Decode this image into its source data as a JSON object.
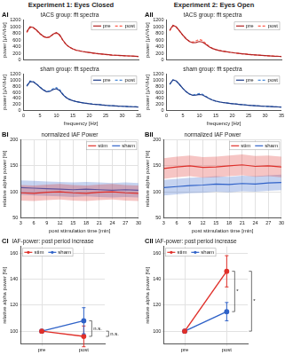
{
  "figure": {
    "headers": [
      "Experiment 1: Eyes Closed",
      "Experiment 2: Eyes Open"
    ]
  },
  "chart_data": [
    {
      "type": "line",
      "panel_label": "AI",
      "title": "tACS group: fft spectra",
      "y_label": "power [µV²/Hz]",
      "x": [
        1,
        2,
        3,
        4,
        5,
        6,
        7,
        8,
        9,
        10,
        11,
        12,
        13,
        14,
        15,
        16,
        17,
        18,
        19,
        20,
        21,
        22,
        23,
        24,
        25,
        26,
        27,
        28,
        29,
        30,
        31,
        32,
        33,
        34,
        35
      ],
      "xlim": [
        0,
        35
      ],
      "xticks": [
        0,
        5,
        10,
        15,
        20,
        25,
        30,
        35
      ],
      "ylim": [
        0,
        1200
      ],
      "yticks": [
        0,
        200,
        400,
        600,
        800,
        1000,
        1200
      ],
      "grid": false,
      "legend": "top-right",
      "tick_labels": "y",
      "series": [
        {
          "name": "pre",
          "color": "#b22222",
          "line_style": "solid",
          "values": [
            850,
            1000,
            980,
            900,
            800,
            720,
            680,
            700,
            780,
            830,
            760,
            600,
            470,
            390,
            340,
            300,
            280,
            260,
            245,
            230,
            215,
            200,
            190,
            180,
            170,
            160,
            150,
            145,
            140,
            135,
            130,
            125,
            120,
            115,
            110
          ]
        },
        {
          "name": "post",
          "color": "#ff5a4a",
          "line_style": "dashed",
          "values": [
            830,
            980,
            970,
            890,
            790,
            710,
            670,
            690,
            770,
            810,
            740,
            590,
            460,
            385,
            335,
            295,
            275,
            255,
            240,
            225,
            210,
            198,
            188,
            178,
            168,
            158,
            150,
            144,
            138,
            133,
            128,
            123,
            118,
            113,
            108
          ]
        }
      ]
    },
    {
      "type": "line",
      "title": "sham group: fft spectra",
      "x_label": "frequency [Hz]",
      "y_label": "power [µV²/Hz]",
      "x": [
        1,
        2,
        3,
        4,
        5,
        6,
        7,
        8,
        9,
        10,
        11,
        12,
        13,
        14,
        15,
        16,
        17,
        18,
        19,
        20,
        21,
        22,
        23,
        24,
        25,
        26,
        27,
        28,
        29,
        30,
        31,
        32,
        33,
        34,
        35
      ],
      "xlim": [
        0,
        35
      ],
      "xticks": [
        0,
        5,
        10,
        15,
        20,
        25,
        30,
        35
      ],
      "ylim": [
        0,
        1200
      ],
      "yticks": [
        0,
        200,
        400,
        600,
        800,
        1000,
        1200
      ],
      "grid": false,
      "legend": "top-right",
      "series": [
        {
          "name": "pre",
          "color": "#1f3c88",
          "line_style": "solid",
          "values": [
            800,
            960,
            950,
            870,
            770,
            680,
            620,
            630,
            690,
            720,
            660,
            520,
            420,
            360,
            320,
            290,
            270,
            250,
            235,
            220,
            205,
            195,
            185,
            175,
            165,
            155,
            148,
            142,
            137,
            132,
            127,
            122,
            117,
            113,
            108
          ]
        },
        {
          "name": "post",
          "color": "#4a8ad8",
          "line_style": "dashed",
          "values": [
            820,
            980,
            960,
            880,
            780,
            690,
            630,
            650,
            720,
            760,
            690,
            540,
            430,
            365,
            325,
            292,
            272,
            252,
            237,
            222,
            207,
            196,
            186,
            176,
            166,
            156,
            149,
            143,
            138,
            133,
            128,
            123,
            118,
            114,
            109
          ]
        }
      ]
    },
    {
      "type": "line",
      "panel_label": "AII",
      "title": "tACS group: fft spectra",
      "y_label": "power [µV²/Hz]",
      "x": [
        1,
        2,
        3,
        4,
        5,
        6,
        7,
        8,
        9,
        10,
        11,
        12,
        13,
        14,
        15,
        16,
        17,
        18,
        19,
        20,
        21,
        22,
        23,
        24,
        25,
        26,
        27,
        28,
        29,
        30,
        31,
        32,
        33,
        34,
        35
      ],
      "xlim": [
        0,
        35
      ],
      "xticks": [
        0,
        5,
        10,
        15,
        20,
        25,
        30,
        35
      ],
      "ylim": [
        0,
        1200
      ],
      "yticks": [
        0,
        200,
        400,
        600,
        800,
        1000,
        1200
      ],
      "grid": false,
      "legend": "top-right",
      "tick_labels": "y",
      "series": [
        {
          "name": "pre",
          "color": "#b22222",
          "line_style": "solid",
          "values": [
            900,
            1050,
            1000,
            880,
            750,
            640,
            560,
            520,
            530,
            560,
            540,
            470,
            400,
            350,
            315,
            290,
            270,
            255,
            240,
            225,
            212,
            200,
            190,
            180,
            170,
            162,
            154,
            147,
            140,
            134,
            128,
            122,
            117,
            112,
            107
          ]
        },
        {
          "name": "post",
          "color": "#ff5a4a",
          "line_style": "dashed",
          "values": [
            880,
            1030,
            990,
            870,
            745,
            640,
            565,
            540,
            580,
            620,
            590,
            500,
            415,
            355,
            318,
            292,
            272,
            256,
            241,
            226,
            213,
            201,
            191,
            181,
            171,
            163,
            155,
            148,
            141,
            135,
            129,
            123,
            118,
            113,
            108
          ]
        }
      ]
    },
    {
      "type": "line",
      "title": "sham group: fft spectra",
      "x_label": "frequency [Hz]",
      "y_label": "power [µV²/Hz]",
      "x": [
        1,
        2,
        3,
        4,
        5,
        6,
        7,
        8,
        9,
        10,
        11,
        12,
        13,
        14,
        15,
        16,
        17,
        18,
        19,
        20,
        21,
        22,
        23,
        24,
        25,
        26,
        27,
        28,
        29,
        30,
        31,
        32,
        33,
        34,
        35
      ],
      "xlim": [
        0,
        35
      ],
      "xticks": [
        0,
        5,
        10,
        15,
        20,
        25,
        30,
        35
      ],
      "ylim": [
        0,
        1200
      ],
      "yticks": [
        0,
        200,
        400,
        600,
        800,
        1000,
        1200
      ],
      "grid": false,
      "legend": "top-right",
      "series": [
        {
          "name": "pre",
          "color": "#1f3c88",
          "line_style": "solid",
          "values": [
            870,
            1020,
            980,
            860,
            730,
            620,
            540,
            500,
            510,
            530,
            510,
            450,
            390,
            340,
            305,
            280,
            262,
            248,
            234,
            220,
            208,
            197,
            187,
            177,
            168,
            160,
            152,
            145,
            138,
            132,
            126,
            120,
            115,
            110,
            105
          ]
        },
        {
          "name": "post",
          "color": "#4a8ad8",
          "line_style": "dashed",
          "values": [
            860,
            1010,
            970,
            855,
            728,
            620,
            545,
            510,
            530,
            560,
            535,
            465,
            395,
            343,
            307,
            282,
            263,
            249,
            235,
            221,
            209,
            198,
            188,
            178,
            169,
            161,
            153,
            146,
            139,
            133,
            127,
            121,
            116,
            111,
            106
          ]
        }
      ]
    },
    {
      "type": "line",
      "panel_label": "BI",
      "title": "normalized IAF Power",
      "x_label": "post stimulation time [min]",
      "y_label": "relative alpha power [%]",
      "x": [
        3,
        6,
        9,
        12,
        15,
        18,
        21,
        24,
        27,
        30
      ],
      "xlim": [
        3,
        30
      ],
      "xticks": [
        3,
        6,
        9,
        12,
        15,
        18,
        21,
        24,
        27,
        30
      ],
      "ylim": [
        50,
        200
      ],
      "yticks": [
        50,
        100,
        150,
        200
      ],
      "grid": true,
      "legend": "top-right",
      "series": [
        {
          "name": "stim",
          "color": "#e0302a",
          "line_style": "solid",
          "values": [
            98,
            97,
            99,
            100,
            98,
            97,
            99,
            100,
            98,
            97
          ],
          "error": [
            15,
            15,
            15,
            15,
            15,
            15,
            15,
            15,
            15,
            15
          ]
        },
        {
          "name": "sham",
          "color": "#2f62c8",
          "line_style": "solid",
          "values": [
            108,
            107,
            106,
            105,
            104,
            105,
            104,
            103,
            104,
            103
          ],
          "error": [
            14,
            14,
            14,
            14,
            14,
            14,
            14,
            14,
            14,
            14
          ]
        }
      ]
    },
    {
      "type": "line",
      "panel_label": "BII",
      "title": "normalized IAF Power",
      "x_label": "post stimulation time [min]",
      "y_label": "relative alpha power [%]",
      "x": [
        3,
        6,
        9,
        12,
        15,
        18,
        21,
        24,
        27,
        30
      ],
      "xlim": [
        3,
        30
      ],
      "xticks": [
        3,
        6,
        9,
        12,
        15,
        18,
        21,
        24,
        27,
        30
      ],
      "ylim": [
        50,
        200
      ],
      "yticks": [
        50,
        100,
        150,
        200
      ],
      "grid": true,
      "legend": "top-right",
      "series": [
        {
          "name": "stim",
          "color": "#e0302a",
          "line_style": "solid",
          "values": [
            145,
            148,
            150,
            147,
            148,
            150,
            152,
            149,
            150,
            148
          ],
          "error": [
            20,
            20,
            20,
            20,
            20,
            20,
            20,
            20,
            20,
            20
          ]
        },
        {
          "name": "sham",
          "color": "#2f62c8",
          "line_style": "solid",
          "values": [
            108,
            110,
            112,
            113,
            115,
            114,
            116,
            115,
            117,
            118
          ],
          "error": [
            15,
            15,
            15,
            15,
            15,
            15,
            15,
            15,
            15,
            15
          ]
        }
      ]
    },
    {
      "type": "line",
      "panel_label": "CI",
      "title": "IAF-power: post period increase",
      "y_label": "relative alpha power [%]",
      "categories": [
        "pre",
        "post"
      ],
      "ylim": [
        90,
        165
      ],
      "yticks": [
        100,
        120,
        140,
        160
      ],
      "grid": true,
      "legend": "top-left",
      "annotations": [
        "n.s.",
        "n.s."
      ],
      "series": [
        {
          "name": "stim",
          "color": "#e0302a",
          "marker": "circle",
          "line_style": "solid",
          "values": [
            100,
            96
          ],
          "error": [
            null,
            8
          ]
        },
        {
          "name": "sham",
          "color": "#2f62c8",
          "marker": "circle",
          "line_style": "solid",
          "values": [
            100,
            108
          ],
          "error": [
            null,
            10
          ]
        }
      ]
    },
    {
      "type": "line",
      "panel_label": "CII",
      "title": "IAF-power: post period increase",
      "y_label": "relative alpha power [%]",
      "categories": [
        "pre",
        "post"
      ],
      "ylim": [
        90,
        165
      ],
      "yticks": [
        100,
        120,
        140,
        160
      ],
      "grid": true,
      "legend": "top-left",
      "annotations": [
        "*",
        "*"
      ],
      "series": [
        {
          "name": "stim",
          "color": "#e0302a",
          "marker": "circle",
          "line_style": "solid",
          "values": [
            100,
            146
          ],
          "error": [
            null,
            12
          ]
        },
        {
          "name": "sham",
          "color": "#2f62c8",
          "marker": "circle",
          "line_style": "solid",
          "values": [
            100,
            115
          ],
          "error": [
            null,
            7
          ]
        }
      ]
    }
  ]
}
